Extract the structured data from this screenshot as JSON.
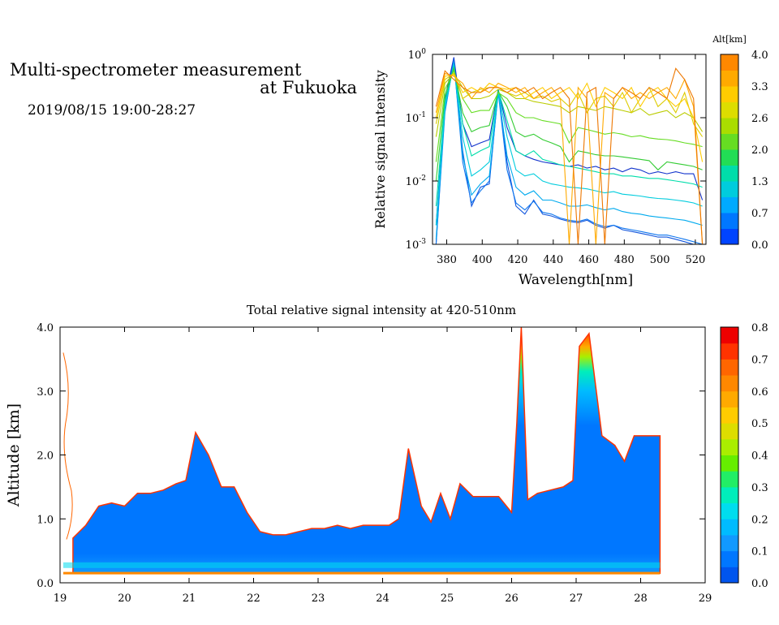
{
  "header": {
    "title_line1": "Multi-spectrometer measurement",
    "title_line2": "at Fukuoka",
    "datetime": "2019/08/15 19:00-28:27"
  },
  "chart_data": [
    {
      "type": "line",
      "title": "",
      "xlabel": "Wavelength[nm]",
      "ylabel": "Relative signal intensity",
      "yscale": "log",
      "xlim": [
        372,
        526
      ],
      "ylim": [
        0.001,
        1
      ],
      "x_ticks": [
        380,
        400,
        420,
        440,
        460,
        480,
        500,
        520
      ],
      "y_ticks": [
        {
          "label": "10",
          "exp": "-3",
          "v": 0.001
        },
        {
          "label": "10",
          "exp": "-2",
          "v": 0.01
        },
        {
          "label": "10",
          "exp": "-1",
          "v": 0.1
        },
        {
          "label": "10",
          "exp": "0",
          "v": 1
        }
      ],
      "colorbar": {
        "title": "Alt[km]",
        "ticks": [
          "0.0",
          "0.7",
          "1.3",
          "2.0",
          "2.6",
          "3.3",
          "4.0"
        ],
        "colors": [
          "#0044ff",
          "#0077ff",
          "#00aaff",
          "#00ccdd",
          "#00ddaa",
          "#22dd55",
          "#66dd22",
          "#aadd00",
          "#dddd00",
          "#ffcc00",
          "#ffaa00",
          "#ff8800"
        ]
      },
      "x": [
        374,
        379,
        384,
        389,
        394,
        399,
        404,
        409,
        414,
        419,
        424,
        429,
        434,
        439,
        444,
        449,
        454,
        459,
        464,
        469,
        474,
        479,
        484,
        489,
        494,
        499,
        504,
        509,
        514,
        519,
        524
      ],
      "series": [
        {
          "color": "#1133cc",
          "values": [
            0.002,
            0.2,
            0.9,
            0.08,
            0.035,
            0.04,
            0.045,
            0.28,
            0.07,
            0.03,
            0.025,
            0.022,
            0.02,
            0.019,
            0.018,
            0.017,
            0.018,
            0.016,
            0.017,
            0.015,
            0.016,
            0.014,
            0.016,
            0.015,
            0.013,
            0.014,
            0.013,
            0.014,
            0.013,
            0.013,
            0.005
          ]
        },
        {
          "color": "#1155dd",
          "values": [
            0.001,
            0.15,
            0.85,
            0.03,
            0.004,
            0.008,
            0.009,
            0.28,
            0.02,
            0.004,
            0.003,
            0.005,
            0.003,
            0.0028,
            0.0025,
            0.0023,
            0.0022,
            0.0024,
            0.002,
            0.0018,
            0.002,
            0.0017,
            0.0016,
            0.0015,
            0.0014,
            0.0013,
            0.0013,
            0.0012,
            0.0011,
            0.001,
            0.001
          ]
        },
        {
          "color": "#1177ee",
          "values": [
            0.001,
            0.12,
            0.8,
            0.02,
            0.0045,
            0.007,
            0.01,
            0.25,
            0.015,
            0.0045,
            0.0035,
            0.0048,
            0.0032,
            0.003,
            0.0026,
            0.0024,
            0.0023,
            0.0025,
            0.0021,
            0.0019,
            0.002,
            0.0018,
            0.0017,
            0.0016,
            0.0015,
            0.0014,
            0.0014,
            0.0013,
            0.0012,
            0.0011,
            0.001
          ]
        },
        {
          "color": "#00aaee",
          "values": [
            0.0012,
            0.13,
            0.75,
            0.025,
            0.006,
            0.009,
            0.012,
            0.25,
            0.025,
            0.008,
            0.006,
            0.007,
            0.005,
            0.005,
            0.0045,
            0.004,
            0.004,
            0.0042,
            0.0038,
            0.0035,
            0.0037,
            0.0033,
            0.0031,
            0.003,
            0.0028,
            0.0027,
            0.0026,
            0.0025,
            0.0024,
            0.0022,
            0.002
          ]
        },
        {
          "color": "#00ccdd",
          "values": [
            0.002,
            0.15,
            0.7,
            0.05,
            0.012,
            0.015,
            0.02,
            0.26,
            0.05,
            0.015,
            0.012,
            0.013,
            0.01,
            0.009,
            0.0085,
            0.008,
            0.0078,
            0.0075,
            0.007,
            0.0065,
            0.0068,
            0.0062,
            0.006,
            0.0058,
            0.0055,
            0.0053,
            0.0052,
            0.005,
            0.0048,
            0.0045,
            0.004
          ]
        },
        {
          "color": "#00ddaa",
          "values": [
            0.004,
            0.18,
            0.65,
            0.08,
            0.025,
            0.03,
            0.035,
            0.27,
            0.09,
            0.03,
            0.025,
            0.03,
            0.022,
            0.02,
            0.018,
            0.017,
            0.016,
            0.015,
            0.014,
            0.013,
            0.013,
            0.012,
            0.012,
            0.0115,
            0.011,
            0.011,
            0.0105,
            0.01,
            0.0095,
            0.009,
            0.008
          ]
        },
        {
          "color": "#33cc33",
          "values": [
            0.01,
            0.22,
            0.6,
            0.12,
            0.06,
            0.07,
            0.075,
            0.26,
            0.15,
            0.06,
            0.05,
            0.055,
            0.045,
            0.04,
            0.035,
            0.02,
            0.03,
            0.028,
            0.026,
            0.025,
            0.025,
            0.024,
            0.023,
            0.022,
            0.021,
            0.015,
            0.02,
            0.019,
            0.018,
            0.017,
            0.015
          ]
        },
        {
          "color": "#66dd22",
          "values": [
            0.02,
            0.28,
            0.55,
            0.2,
            0.12,
            0.13,
            0.13,
            0.25,
            0.2,
            0.12,
            0.1,
            0.1,
            0.09,
            0.085,
            0.08,
            0.04,
            0.07,
            0.065,
            0.06,
            0.055,
            0.058,
            0.055,
            0.05,
            0.052,
            0.048,
            0.046,
            0.045,
            0.043,
            0.04,
            0.038,
            0.035
          ]
        },
        {
          "color": "#bbcc00",
          "values": [
            0.05,
            0.35,
            0.5,
            0.3,
            0.2,
            0.2,
            0.22,
            0.28,
            0.25,
            0.2,
            0.2,
            0.18,
            0.17,
            0.16,
            0.15,
            0.12,
            0.15,
            0.14,
            0.13,
            0.15,
            0.14,
            0.13,
            0.12,
            0.14,
            0.11,
            0.12,
            0.13,
            0.1,
            0.12,
            0.1,
            0.06
          ]
        },
        {
          "color": "#ddcc00",
          "values": [
            0.08,
            0.4,
            0.5,
            0.2,
            0.25,
            0.28,
            0.3,
            0.3,
            0.25,
            0.22,
            0.25,
            0.2,
            0.22,
            0.18,
            0.2,
            0.15,
            0.25,
            0.12,
            0.2,
            0.22,
            0.15,
            0.25,
            0.12,
            0.2,
            0.3,
            0.15,
            0.2,
            0.12,
            0.25,
            0.08,
            0.05
          ]
        },
        {
          "color": "#ffcc00",
          "values": [
            0.1,
            0.45,
            0.48,
            0.25,
            0.3,
            0.25,
            0.35,
            0.3,
            0.28,
            0.3,
            0.2,
            0.25,
            0.3,
            0.2,
            0.25,
            0.3,
            0.2,
            0.35,
            0.15,
            0.3,
            0.25,
            0.2,
            0.3,
            0.15,
            0.25,
            0.3,
            0.2,
            0.15,
            0.2,
            0.1,
            0.02
          ]
        },
        {
          "color": "#ffaa00",
          "values": [
            0.12,
            0.5,
            0.45,
            0.35,
            0.2,
            0.3,
            0.25,
            0.35,
            0.3,
            0.25,
            0.3,
            0.2,
            0.25,
            0.3,
            0.2,
            0.001,
            0.3,
            0.2,
            0.001,
            0.25,
            0.2,
            0.3,
            0.2,
            0.25,
            0.2,
            0.25,
            0.3,
            0.2,
            0.4,
            0.15,
            0.001
          ]
        },
        {
          "color": "#ee7700",
          "values": [
            0.15,
            0.55,
            0.4,
            0.3,
            0.25,
            0.25,
            0.3,
            0.3,
            0.25,
            0.3,
            0.25,
            0.3,
            0.2,
            0.25,
            0.3,
            0.2,
            0.001,
            0.25,
            0.3,
            0.001,
            0.2,
            0.3,
            0.25,
            0.2,
            0.3,
            0.25,
            0.2,
            0.6,
            0.4,
            0.2,
            0.001
          ]
        }
      ]
    },
    {
      "type": "heatmap",
      "title": "Total relative signal intensity at 420-510nm",
      "xlabel": "",
      "ylabel": "Altitude [km]",
      "xlim": [
        19,
        29
      ],
      "ylim": [
        0,
        4
      ],
      "x_ticks": [
        "19",
        "20",
        "21",
        "22",
        "23",
        "24",
        "25",
        "26",
        "27",
        "28",
        "29"
      ],
      "y_ticks": [
        "0.0",
        "1.0",
        "2.0",
        "3.0",
        "4.0"
      ],
      "colorbar": {
        "ticks": [
          "0.0",
          "0.1",
          "0.2",
          "0.3",
          "0.4",
          "0.5",
          "0.6",
          "0.7",
          "0.8"
        ],
        "colors": [
          "#0055ee",
          "#0077ff",
          "#1199ff",
          "#00bbff",
          "#00ddee",
          "#00eebb",
          "#22ee66",
          "#66ee00",
          "#aaee00",
          "#dddd00",
          "#ffcc00",
          "#ffaa00",
          "#ff8800",
          "#ff6600",
          "#ff3300",
          "#ee0000"
        ]
      },
      "data_end_hour": 28.3,
      "cloud_base_km": {
        "hours": [
          19.2,
          19.4,
          19.6,
          19.8,
          20.0,
          20.2,
          20.4,
          20.6,
          20.8,
          20.95,
          21.1,
          21.3,
          21.5,
          21.7,
          21.9,
          22.1,
          22.3,
          22.5,
          22.7,
          22.9,
          23.1,
          23.3,
          23.5,
          23.7,
          23.9,
          24.1,
          24.25,
          24.4,
          24.6,
          24.75,
          24.9,
          25.05,
          25.2,
          25.4,
          25.6,
          25.8,
          26.0,
          26.08,
          26.15,
          26.25,
          26.4,
          26.6,
          26.8,
          26.95,
          27.05,
          27.2,
          27.4,
          27.6,
          27.75,
          27.9,
          28.1,
          28.3
        ],
        "km": [
          0.7,
          0.9,
          1.2,
          1.25,
          1.2,
          1.4,
          1.4,
          1.45,
          1.55,
          1.6,
          2.35,
          2.0,
          1.5,
          1.5,
          1.1,
          0.8,
          0.75,
          0.75,
          0.8,
          0.85,
          0.85,
          0.9,
          0.85,
          0.9,
          0.9,
          0.9,
          1.0,
          2.1,
          1.2,
          0.95,
          1.4,
          1.0,
          1.55,
          1.35,
          1.35,
          1.35,
          1.1,
          2.5,
          4.0,
          1.3,
          1.4,
          1.45,
          1.5,
          1.6,
          3.7,
          3.9,
          2.3,
          2.15,
          1.9,
          2.3,
          2.3,
          2.3
        ]
      }
    }
  ]
}
